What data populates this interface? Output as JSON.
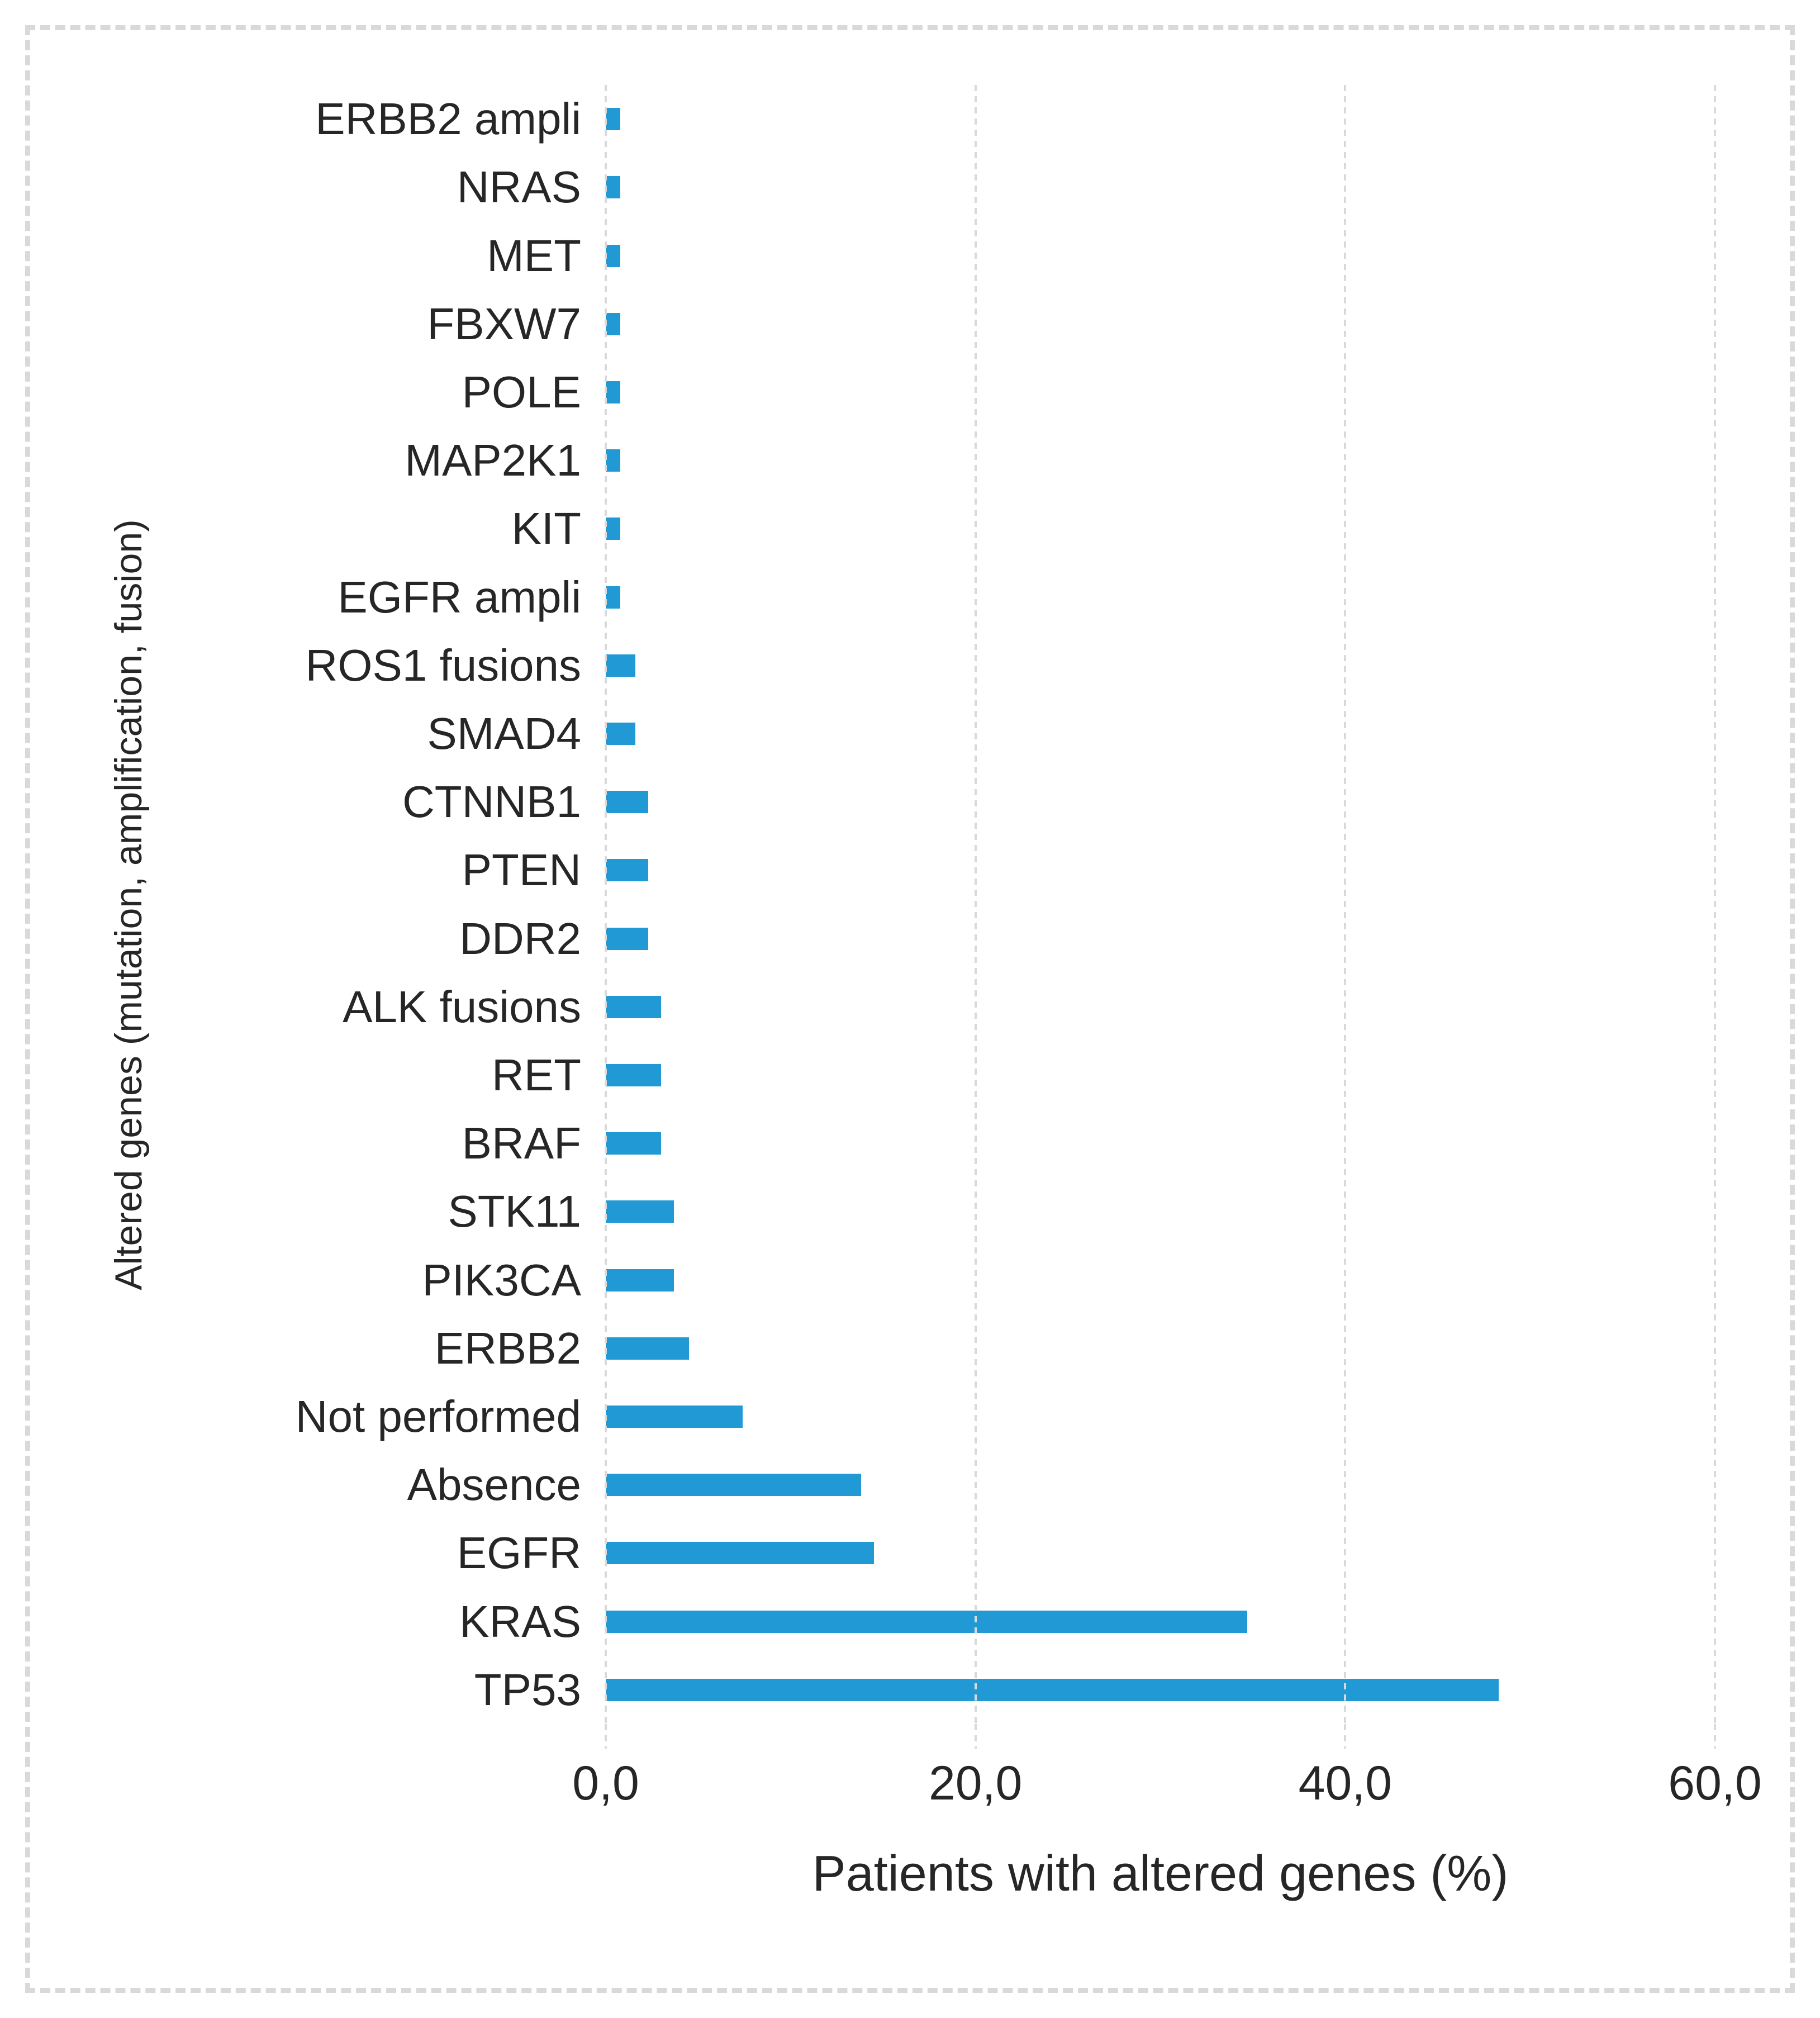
{
  "chart_data": {
    "type": "bar",
    "orientation": "horizontal",
    "title": "",
    "xlabel": "Patients with altered genes (%)",
    "ylabel": "Altered genes (mutation, amplification, fusion)",
    "xlim": [
      0,
      64
    ],
    "x_ticks": [
      {
        "value": 0,
        "label": "0,0"
      },
      {
        "value": 20,
        "label": "20,0"
      },
      {
        "value": 40,
        "label": "40,0"
      },
      {
        "value": 60,
        "label": "60,0"
      }
    ],
    "grid": "vertical-dashed",
    "legend_position": "none",
    "bar_color": "#2099D4",
    "gridline_color": "#D9D9D9",
    "frame_border_color": "#D9D9D9",
    "text_color": "#262626",
    "categories_top_to_bottom": [
      "ERBB2 ampli",
      "NRAS",
      "MET",
      "FBXW7",
      "POLE",
      "MAP2K1",
      "KIT",
      "EGFR ampli",
      "ROS1 fusions",
      "SMAD4",
      "CTNNB1",
      "PTEN",
      "DDR2",
      "ALK fusions",
      "RET",
      "BRAF",
      "STK11",
      "PIK3CA",
      "ERBB2",
      "Not performed",
      "Absence",
      "EGFR",
      "KRAS",
      "TP53"
    ],
    "values_percent_top_to_bottom": [
      0.8,
      0.8,
      0.8,
      0.8,
      0.8,
      0.8,
      0.8,
      0.8,
      1.6,
      1.6,
      2.3,
      2.3,
      2.3,
      3.0,
      3.0,
      3.0,
      3.7,
      3.7,
      4.5,
      7.4,
      13.8,
      14.5,
      34.7,
      48.3
    ]
  }
}
